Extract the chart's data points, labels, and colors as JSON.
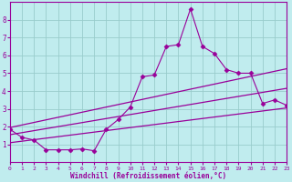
{
  "xlabel": "Windchill (Refroidissement éolien,°C)",
  "bg_color": "#c0ecee",
  "line_color": "#990099",
  "grid_color": "#99cccc",
  "main_x": [
    0,
    1,
    2,
    3,
    4,
    5,
    6,
    7,
    8,
    9,
    10,
    11,
    12,
    13,
    14,
    15,
    16,
    17,
    18,
    19,
    20,
    21,
    22,
    23
  ],
  "main_y": [
    1.85,
    1.4,
    1.25,
    0.7,
    0.7,
    0.7,
    0.75,
    0.65,
    1.85,
    2.4,
    3.1,
    4.8,
    4.9,
    6.5,
    6.6,
    8.6,
    6.5,
    6.1,
    5.2,
    5.0,
    5.0,
    3.3,
    3.5,
    3.2
  ],
  "upper_line_x": [
    0,
    23
  ],
  "upper_line_y": [
    1.95,
    5.25
  ],
  "lower_line_x": [
    0,
    23
  ],
  "lower_line_y": [
    1.1,
    3.05
  ],
  "mid_line_x": [
    0,
    23
  ],
  "mid_line_y": [
    1.55,
    4.15
  ],
  "xlim": [
    0,
    23
  ],
  "ylim": [
    0,
    9
  ],
  "xticks": [
    0,
    1,
    2,
    3,
    4,
    5,
    6,
    7,
    8,
    9,
    10,
    11,
    12,
    13,
    14,
    15,
    16,
    17,
    18,
    19,
    20,
    21,
    22,
    23
  ],
  "yticks": [
    1,
    2,
    3,
    4,
    5,
    6,
    7,
    8
  ]
}
